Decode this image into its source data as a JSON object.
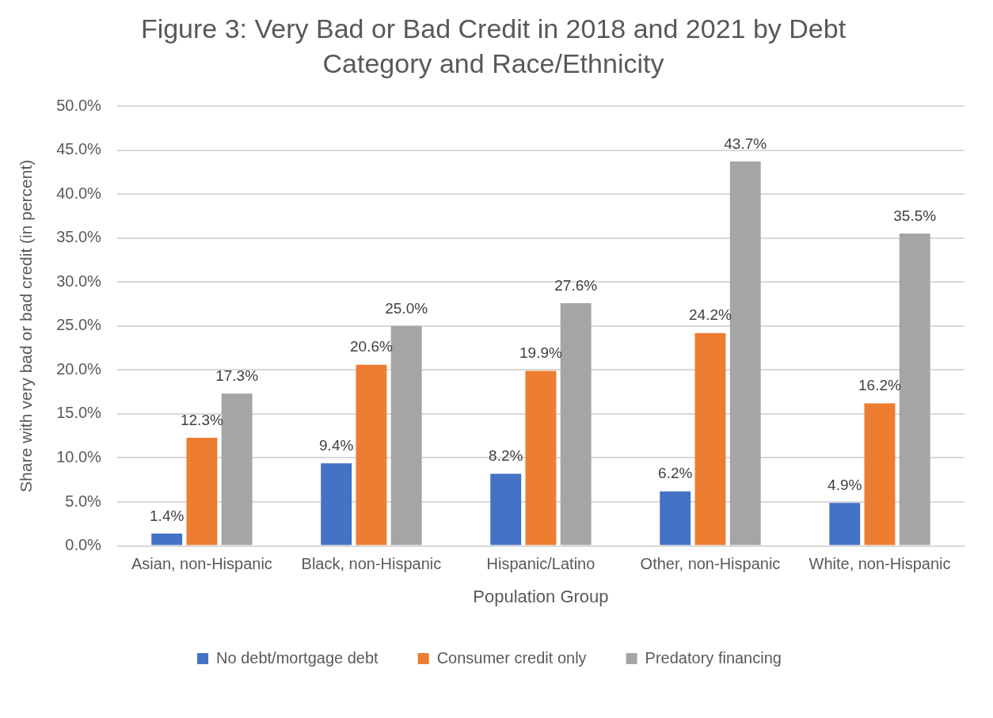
{
  "chart_data": {
    "type": "bar",
    "title": "Figure 3: Very Bad or Bad Credit in 2018 and 2021 by Debt Category and Race/Ethnicity",
    "xlabel": "Population Group",
    "ylabel": "Share with very bad or bad credit (in percent)",
    "categories": [
      "Asian, non-Hispanic",
      "Black, non-Hispanic",
      "Hispanic/Latino",
      "Other, non-Hispanic",
      "White, non-Hispanic"
    ],
    "series": [
      {
        "name": "No debt/mortgage debt",
        "color": "#4472c4",
        "values": [
          1.4,
          9.4,
          8.2,
          6.2,
          4.9
        ],
        "value_labels": [
          "1.4%",
          "9.4%",
          "8.2%",
          "6.2%",
          "4.9%"
        ]
      },
      {
        "name": "Consumer credit only",
        "color": "#ed7d31",
        "values": [
          12.3,
          20.6,
          19.9,
          24.2,
          16.2
        ],
        "value_labels": [
          "12.3%",
          "20.6%",
          "19.9%",
          "24.2%",
          "16.2%"
        ]
      },
      {
        "name": "Predatory financing",
        "color": "#a5a5a5",
        "values": [
          17.3,
          25.0,
          27.6,
          43.7,
          35.5
        ],
        "value_labels": [
          "17.3%",
          "25.0%",
          "27.6%",
          "43.7%",
          "35.5%"
        ]
      }
    ],
    "ylim": [
      0,
      50
    ],
    "yticks": [
      {
        "value": 0,
        "label": "0.0%"
      },
      {
        "value": 5,
        "label": "5.0%"
      },
      {
        "value": 10,
        "label": "10.0%"
      },
      {
        "value": 15,
        "label": "15.0%"
      },
      {
        "value": 20,
        "label": "20.0%"
      },
      {
        "value": 25,
        "label": "25.0%"
      },
      {
        "value": 30,
        "label": "30.0%"
      },
      {
        "value": 35,
        "label": "35.0%"
      },
      {
        "value": 40,
        "label": "40.0%"
      },
      {
        "value": 45,
        "label": "45.0%"
      },
      {
        "value": 50,
        "label": "50.0%"
      }
    ],
    "grid": "y",
    "legend": "bottom"
  }
}
